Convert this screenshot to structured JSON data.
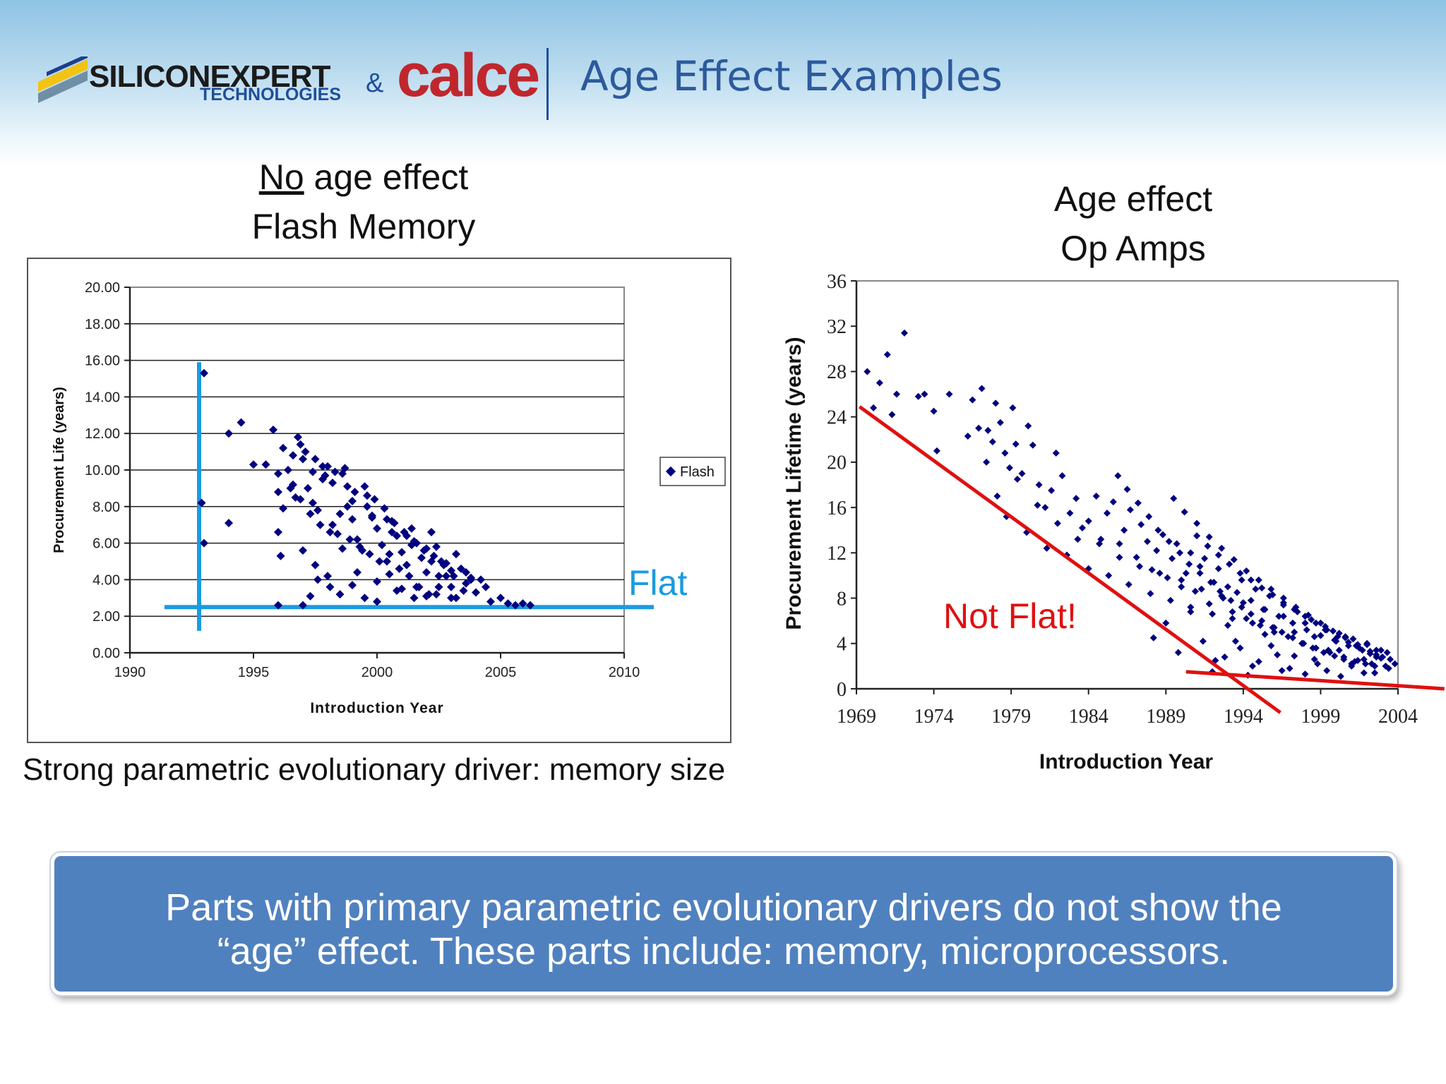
{
  "header": {
    "logo_main": "SILICONEXPERT",
    "logo_sub": "TECHNOLOGIES",
    "ampersand": "&",
    "partner_logo": "calce",
    "title": "Age Effect Examples"
  },
  "left_caption": {
    "underlined": "No",
    "rest": " age effect",
    "line2": "Flash Memory"
  },
  "right_caption": {
    "line1": "Age effect",
    "line2": "Op Amps"
  },
  "note": "Strong parametric evolutionary driver: memory size",
  "banner": {
    "line1": "Parts with primary parametric evolutionary drivers do not show the",
    "line2": "“age” effect.  These parts include: memory, microprocessors."
  },
  "colors": {
    "marker": "#00007f",
    "flat_line": "#1a9be0",
    "trend_line": "#e01010",
    "banner": "#5081bf",
    "title": "#2c5a9c"
  },
  "chart_data": [
    {
      "type": "scatter",
      "title": "",
      "xlabel": "Introduction Year",
      "ylabel": "Procurement Life (years)",
      "xlim": [
        1990,
        2010
      ],
      "ylim": [
        0,
        20
      ],
      "x_ticks": [
        "1990",
        "1995",
        "2000",
        "2005",
        "2010"
      ],
      "y_ticks": [
        "0.00",
        "2.00",
        "4.00",
        "6.00",
        "8.00",
        "10.00",
        "12.00",
        "14.00",
        "16.00",
        "18.00",
        "20.00"
      ],
      "legend": "Flash",
      "legend_position": "right",
      "annotation": "Flat",
      "reference_lines": [
        {
          "name": "vertical",
          "x": [
            1992.8,
            1992.8
          ],
          "y": [
            1.2,
            15.9
          ]
        },
        {
          "name": "flat",
          "x": [
            1991.4,
            2011.2
          ],
          "y": [
            2.5,
            2.5
          ]
        }
      ],
      "series": [
        {
          "name": "Flash",
          "x": [
            1993.0,
            1992.9,
            1993.0,
            1994.0,
            1994.5,
            1994.0,
            1995.5,
            1995.8,
            1996.0,
            1996.0,
            1996.1,
            1996.0,
            1996.2,
            1996.4,
            1996.6,
            1996.7,
            1996.9,
            1997.0,
            1997.2,
            1997.4,
            1997.6,
            1997.8,
            1998.0,
            1998.2,
            1998.4,
            1998.6,
            1998.8,
            1999.0,
            1999.2,
            1999.4,
            1999.6,
            1999.8,
            2000.0,
            2000.2,
            2000.4,
            2000.6,
            2000.8,
            2001.0,
            2001.2,
            2001.4,
            2001.6,
            2001.8,
            2002.0,
            2002.2,
            2002.4,
            2002.6,
            2002.8,
            2003.0,
            2003.2,
            2003.4,
            2003.6,
            2003.8,
            2004.0,
            2004.2,
            2004.4,
            2004.6,
            2005.0,
            2005.3,
            2005.6,
            2005.9,
            2006.2,
            1997.0,
            1997.3,
            1997.6,
            1998.1,
            1998.5,
            1999.0,
            1999.5,
            2000.0,
            2000.5,
            2001.0,
            2001.5,
            2002.0,
            2002.5,
            2003.0,
            2003.5,
            1997.1,
            1997.5,
            1997.9,
            1998.3,
            1998.7,
            1999.1,
            1999.5,
            1999.9,
            2000.3,
            2000.7,
            2001.1,
            2001.5,
            2001.9,
            2002.3,
            2002.7,
            2003.1,
            1996.5,
            1996.9,
            1997.3,
            1997.7,
            1998.1,
            1998.5,
            1998.9,
            1999.3,
            1999.7,
            2000.1,
            2000.5,
            2000.9,
            2001.3,
            2001.7,
            2002.1,
            2002.5,
            1996.6,
            1997.4,
            1998.2,
            1999.0,
            1999.8,
            2000.6,
            2001.4,
            2002.2,
            2003.0,
            2003.8,
            1996.0,
            1996.2,
            1997.0,
            1997.5,
            1998.0,
            1998.6,
            1999.2,
            2000.0,
            2000.8,
            2001.6,
            2002.4,
            2003.2,
            1995.0,
            1996.8,
            1997.8,
            1998.8,
            1999.6,
            2000.4,
            2001.2,
            2002.0,
            2002.8,
            2003.6
          ],
          "y": [
            15.3,
            8.2,
            6.0,
            7.1,
            12.6,
            12.0,
            10.3,
            12.2,
            9.8,
            6.6,
            5.3,
            2.6,
            11.2,
            10.0,
            9.2,
            8.5,
            11.4,
            10.6,
            9.0,
            8.2,
            7.8,
            9.5,
            10.2,
            7.0,
            6.5,
            9.8,
            8.0,
            7.3,
            6.2,
            5.6,
            8.6,
            7.4,
            6.8,
            5.9,
            5.0,
            7.2,
            6.4,
            5.5,
            4.8,
            6.8,
            6.0,
            5.2,
            4.4,
            6.6,
            5.8,
            5.0,
            4.2,
            3.6,
            5.4,
            4.6,
            3.8,
            4.0,
            3.3,
            4.0,
            3.6,
            2.8,
            3.0,
            2.7,
            2.6,
            2.7,
            2.6,
            2.6,
            3.1,
            4.0,
            3.6,
            3.2,
            3.7,
            3.0,
            2.8,
            4.3,
            3.5,
            3.0,
            3.1,
            4.2,
            3.0,
            3.4,
            11.0,
            10.6,
            9.7,
            9.9,
            10.1,
            8.8,
            9.1,
            8.4,
            7.9,
            7.1,
            6.6,
            6.1,
            5.6,
            5.3,
            4.8,
            4.2,
            9.0,
            8.4,
            7.6,
            7.0,
            6.6,
            7.6,
            6.2,
            5.8,
            5.4,
            5.0,
            5.4,
            4.6,
            4.2,
            3.6,
            3.2,
            3.6,
            10.8,
            9.9,
            9.3,
            8.3,
            7.5,
            6.6,
            5.9,
            5.0,
            4.5,
            4.1,
            8.8,
            7.9,
            5.6,
            4.8,
            4.2,
            5.7,
            4.4,
            3.9,
            3.4,
            3.6,
            3.2,
            3.0,
            10.3,
            11.8,
            10.2,
            9.1,
            8.0,
            7.3,
            6.4,
            5.7,
            4.9,
            4.4
          ]
        }
      ]
    },
    {
      "type": "scatter",
      "title": "",
      "xlabel": "Introduction Year",
      "ylabel": "Procurement Lifetime (years)",
      "xlim": [
        1969,
        2004
      ],
      "ylim": [
        0,
        36
      ],
      "x_ticks": [
        "1969",
        "1974",
        "1979",
        "1984",
        "1989",
        "1994",
        "1999",
        "2004"
      ],
      "y_ticks": [
        "0",
        "4",
        "8",
        "12",
        "16",
        "20",
        "24",
        "28",
        "32",
        "36"
      ],
      "annotation": "Not Flat!",
      "reference_lines": [
        {
          "name": "steep-trend",
          "x": [
            1969.2,
            1996.4
          ],
          "y": [
            24.9,
            -2.1
          ]
        },
        {
          "name": "flat-trend",
          "x": [
            1990.3,
            2007.0
          ],
          "y": [
            1.5,
            0.0
          ]
        }
      ],
      "series": [
        {
          "name": "Op Amps",
          "x": [
            1969.7,
            1970.1,
            1970.5,
            1971.0,
            1971.3,
            1971.6,
            1972.1,
            1973.0,
            1973.4,
            1974.0,
            1974.2,
            1975.0,
            1976.2,
            1976.5,
            1976.9,
            1977.1,
            1977.4,
            1977.5,
            1977.8,
            1978.0,
            1978.3,
            1978.6,
            1978.9,
            1979.1,
            1979.3,
            1979.7,
            1980.1,
            1980.4,
            1980.8,
            1981.2,
            1981.6,
            1981.9,
            1982.3,
            1982.8,
            1983.2,
            1983.6,
            1984.0,
            1984.5,
            1984.8,
            1985.2,
            1985.6,
            1986.0,
            1986.3,
            1986.7,
            1987.1,
            1987.4,
            1987.8,
            1988.1,
            1988.4,
            1988.8,
            1989.1,
            1989.4,
            1989.7,
            1990.0,
            1990.3,
            1990.6,
            1990.9,
            1991.2,
            1991.5,
            1991.8,
            1992.1,
            1992.4,
            1992.7,
            1993.0,
            1993.3,
            1993.6,
            1993.9,
            1994.2,
            1994.5,
            1994.8,
            1995.1,
            1995.4,
            1995.7,
            1996.0,
            1996.3,
            1996.6,
            1996.9,
            1997.2,
            1997.5,
            1997.8,
            1998.1,
            1998.4,
            1998.7,
            1999.0,
            1999.3,
            1999.6,
            1999.9,
            2000.2,
            2000.5,
            2000.8,
            2001.1,
            2001.4,
            2001.7,
            2002.0,
            2002.3,
            2002.6,
            2002.9,
            2003.2,
            2003.5,
            2003.8,
            1978.1,
            1978.7,
            1979.4,
            1980.0,
            1980.7,
            1981.3,
            1982.0,
            1982.6,
            1983.3,
            1984.0,
            1984.7,
            1985.3,
            1986.0,
            1986.6,
            1987.3,
            1988.0,
            1988.6,
            1989.3,
            1990.0,
            1990.6,
            1991.3,
            1992.0,
            1992.6,
            1993.3,
            1994.0,
            1994.6,
            1995.3,
            1996.0,
            1996.6,
            1997.3,
            1998.0,
            1998.6,
            1999.3,
            2000.0,
            2000.6,
            2001.3,
            2002.0,
            2002.6,
            2003.3,
            1985.9,
            1986.5,
            1987.2,
            1987.9,
            1988.5,
            1989.2,
            1989.9,
            1990.5,
            1991.2,
            1991.9,
            1992.5,
            1993.2,
            1993.9,
            1994.5,
            1995.2,
            1995.9,
            1996.5,
            1997.2,
            1997.9,
            1998.5,
            1999.2,
            1999.9,
            2000.5,
            2001.2,
            2001.9,
            2002.5,
            1988.2,
            1989.0,
            1989.8,
            1990.6,
            1991.4,
            1992.2,
            1993.0,
            1993.8,
            1994.6,
            1995.4,
            1996.2,
            1997.0,
            1997.8,
            1998.6,
            1999.4,
            2000.2,
            2001.0,
            2001.8,
            2002.6,
            2003.4,
            1991.0,
            1991.7,
            1992.4,
            1993.1,
            1993.8,
            1994.5,
            1995.2,
            1995.9,
            1996.6,
            1997.3,
            1998.0,
            1998.7,
            1999.4,
            2000.1,
            2000.8,
            2001.5,
            2002.2,
            2002.9,
            1992.0,
            1992.8,
            1993.5,
            1994.3,
            1995.0,
            1995.8,
            1996.5,
            1997.3,
            1998.0,
            1998.8,
            1999.5,
            2000.3,
            2001.0,
            2001.8,
            2002.5,
            1989.5,
            1990.2,
            1991.0,
            1991.8,
            1992.6,
            1993.4,
            1994.2,
            1995.0,
            1995.8,
            1996.6,
            1997.4,
            1998.2,
            1999.0,
            1999.8,
            2000.6,
            2001.4,
            2002.2,
            2003.0
          ],
          "y": [
            28.0,
            24.8,
            27.0,
            29.5,
            24.2,
            26.0,
            31.4,
            25.8,
            26.0,
            24.5,
            21.0,
            26.0,
            22.3,
            25.5,
            23.0,
            26.5,
            20.0,
            22.8,
            21.8,
            25.2,
            23.5,
            20.8,
            19.5,
            24.8,
            21.6,
            19.0,
            23.2,
            21.5,
            18.0,
            16.0,
            17.5,
            20.8,
            18.8,
            15.5,
            16.8,
            14.2,
            14.8,
            17.0,
            13.2,
            15.5,
            16.5,
            12.8,
            14.0,
            15.8,
            11.6,
            14.5,
            13.0,
            10.5,
            12.2,
            13.6,
            9.8,
            11.5,
            12.8,
            9.0,
            10.2,
            12.0,
            8.6,
            10.8,
            11.5,
            7.5,
            9.4,
            10.6,
            8.0,
            9.0,
            6.8,
            8.5,
            9.6,
            6.2,
            7.8,
            8.8,
            5.6,
            7.0,
            8.2,
            5.0,
            6.4,
            7.4,
            4.6,
            5.8,
            6.8,
            4.0,
            5.2,
            6.1,
            3.6,
            4.7,
            5.5,
            3.2,
            4.3,
            4.9,
            2.8,
            3.8,
            4.4,
            2.5,
            3.4,
            3.9,
            2.2,
            3.0,
            3.4,
            2.0,
            2.6,
            2.2,
            17.0,
            15.2,
            18.5,
            13.8,
            16.2,
            12.4,
            14.6,
            11.8,
            13.2,
            10.6,
            12.8,
            10.0,
            11.6,
            9.2,
            10.8,
            8.4,
            10.2,
            7.8,
            9.6,
            7.2,
            8.8,
            6.6,
            8.2,
            6.2,
            7.6,
            5.8,
            7.0,
            5.4,
            6.4,
            5.0,
            5.8,
            4.6,
            5.2,
            4.2,
            4.6,
            3.8,
            4.0,
            3.4,
            3.2,
            18.8,
            17.6,
            16.4,
            15.2,
            14.0,
            13.0,
            12.0,
            11.0,
            10.2,
            9.4,
            8.6,
            7.8,
            7.2,
            6.6,
            6.0,
            5.4,
            5.0,
            4.5,
            4.0,
            3.6,
            3.2,
            2.9,
            2.6,
            2.4,
            2.2,
            2.0,
            4.5,
            5.8,
            3.2,
            6.8,
            4.2,
            2.5,
            5.6,
            3.6,
            2.0,
            4.8,
            3.0,
            1.8,
            4.0,
            2.6,
            1.6,
            3.4,
            2.2,
            1.4,
            2.8,
            1.8,
            13.5,
            12.6,
            11.8,
            11.0,
            10.2,
            9.6,
            8.9,
            8.3,
            7.6,
            7.0,
            6.4,
            5.8,
            5.2,
            4.6,
            4.1,
            3.6,
            3.1,
            2.7,
            1.5,
            2.8,
            4.2,
            1.2,
            2.4,
            3.8,
            1.6,
            2.9,
            1.3,
            2.2,
            3.4,
            1.1,
            2.0,
            2.6,
            1.4,
            16.8,
            15.6,
            14.6,
            13.4,
            12.4,
            11.4,
            10.4,
            9.6,
            8.8,
            8.0,
            7.2,
            6.5,
            5.8,
            5.1,
            4.5,
            3.9,
            3.3,
            2.8
          ]
        }
      ]
    }
  ]
}
